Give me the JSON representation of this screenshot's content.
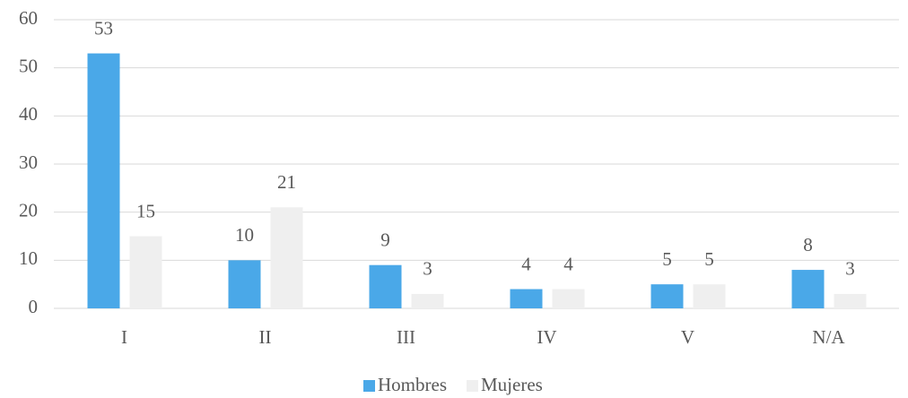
{
  "chart_data": {
    "type": "bar",
    "categories": [
      "I",
      "II",
      "III",
      "IV",
      "V",
      "N/A"
    ],
    "series": [
      {
        "name": "Hombres",
        "color": "#4aa8e8",
        "values": [
          53,
          10,
          9,
          4,
          5,
          8
        ]
      },
      {
        "name": "Mujeres",
        "color": "#efefef",
        "values": [
          15,
          21,
          3,
          4,
          5,
          3
        ]
      }
    ],
    "ylim": [
      0,
      60
    ],
    "yticks": [
      0,
      10,
      20,
      30,
      40,
      50,
      60
    ],
    "grid": true,
    "legend": "bottom"
  }
}
